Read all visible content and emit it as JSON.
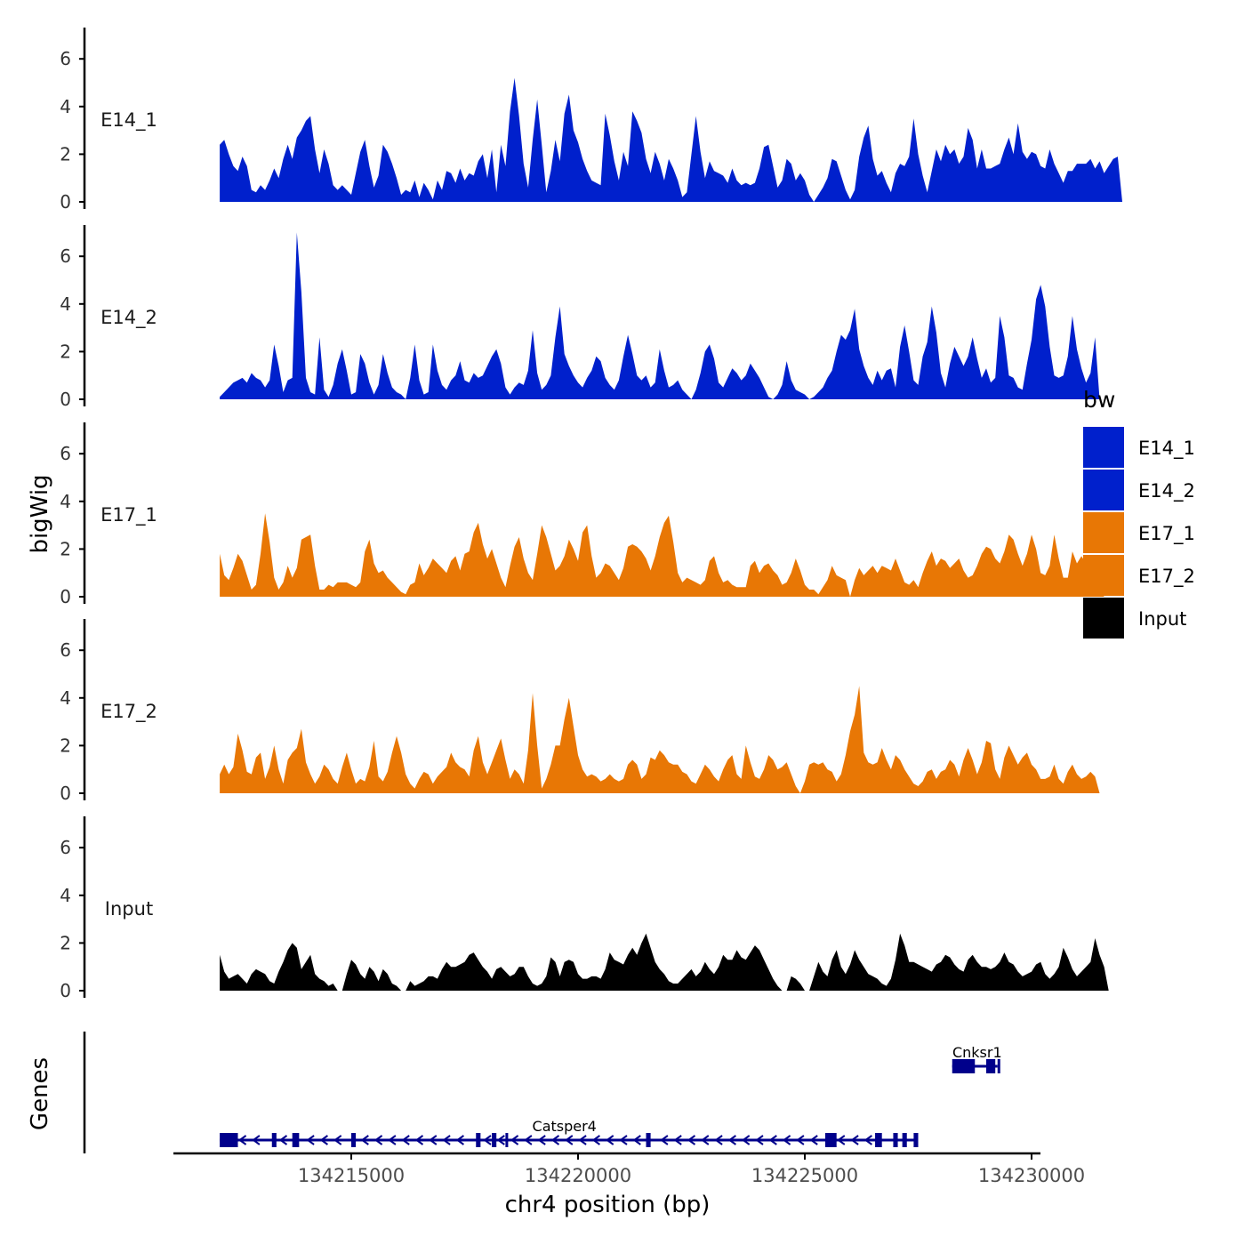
{
  "chart_data": {
    "type": "area",
    "title": "",
    "ylabel": "bigWig",
    "xlabel": "chr4 position (bp)",
    "genes_label": "Genes",
    "ylim": [
      0,
      7
    ],
    "y_ticks": [
      0,
      2,
      4,
      6
    ],
    "xlim": [
      134211300,
      134230200
    ],
    "x_ticks": [
      134215000,
      134220000,
      134225000,
      134230000
    ],
    "legend": {
      "title": "bw",
      "position": "right",
      "entries": [
        {
          "label": "E14_1",
          "color": "#0020CC"
        },
        {
          "label": "E14_2",
          "color": "#0020CC"
        },
        {
          "label": "E17_1",
          "color": "#E87705"
        },
        {
          "label": "E17_2",
          "color": "#E87705"
        },
        {
          "label": "Input",
          "color": "#000000"
        }
      ]
    },
    "track_start": 134212100,
    "track_step": 100,
    "series": [
      {
        "name": "E14_1",
        "color": "#0020CC",
        "values": [
          2.4,
          2.6,
          2.0,
          1.5,
          1.3,
          1.9,
          1.5,
          0.5,
          0.4,
          0.7,
          0.5,
          0.9,
          1.4,
          1.0,
          1.8,
          2.4,
          1.8,
          2.7,
          3.0,
          3.4,
          3.6,
          2.2,
          1.2,
          2.2,
          1.6,
          0.7,
          0.5,
          0.7,
          0.5,
          0.3,
          1.2,
          2.1,
          2.6,
          1.5,
          0.6,
          1.1,
          2.4,
          2.1,
          1.6,
          1.0,
          0.3,
          0.5,
          0.4,
          0.9,
          0.2,
          0.8,
          0.5,
          0.1,
          0.9,
          0.5,
          1.3,
          1.2,
          0.8,
          1.4,
          0.9,
          1.2,
          1.1,
          1.7,
          2.0,
          1.0,
          2.2,
          0.4,
          2.4,
          1.5,
          3.8,
          5.2,
          3.6,
          1.6,
          0.6,
          2.6,
          4.3,
          2.4,
          0.4,
          1.3,
          2.6,
          1.7,
          3.7,
          4.5,
          3.0,
          2.5,
          1.8,
          1.3,
          0.9,
          0.8,
          0.7,
          3.7,
          2.8,
          1.7,
          0.9,
          2.1,
          1.5,
          3.8,
          3.4,
          2.9,
          1.8,
          1.2,
          2.1,
          1.6,
          0.9,
          1.8,
          1.4,
          0.9,
          0.2,
          0.4,
          2.0,
          3.6,
          2.1,
          1.0,
          1.7,
          1.3,
          1.2,
          1.1,
          0.8,
          1.4,
          0.9,
          0.7,
          0.8,
          0.7,
          0.8,
          1.4,
          2.3,
          2.4,
          1.5,
          0.6,
          0.9,
          1.8,
          1.6,
          0.9,
          1.2,
          0.9,
          0.3,
          0.0,
          0.3,
          0.6,
          1.0,
          1.8,
          1.7,
          1.1,
          0.5,
          0.1,
          0.5,
          1.9,
          2.7,
          3.2,
          1.8,
          1.1,
          1.3,
          0.8,
          0.4,
          1.2,
          1.6,
          1.5,
          1.9,
          3.5,
          2.0,
          1.1,
          0.4,
          1.3,
          2.2,
          1.7,
          2.4,
          2.0,
          2.2,
          1.6,
          1.9,
          3.1,
          2.6,
          1.4,
          2.2,
          1.4,
          1.4,
          1.5,
          1.6,
          2.2,
          2.7,
          2.0,
          3.3,
          2.1,
          1.8,
          2.1,
          2.0,
          1.5,
          1.4,
          2.2,
          1.6,
          1.2,
          0.8,
          1.3,
          1.3,
          1.6,
          1.6,
          1.6,
          1.8,
          1.4,
          1.7,
          1.2,
          1.5,
          1.8,
          1.9,
          0.0
        ]
      },
      {
        "name": "E14_2",
        "color": "#0020CC",
        "values": [
          0.1,
          0.3,
          0.5,
          0.7,
          0.8,
          0.9,
          0.7,
          1.1,
          0.9,
          0.8,
          0.5,
          0.8,
          2.3,
          1.4,
          0.3,
          0.8,
          0.9,
          7.0,
          4.5,
          0.9,
          0.3,
          0.2,
          2.6,
          0.4,
          0.1,
          0.6,
          1.5,
          2.1,
          1.2,
          0.2,
          0.3,
          1.9,
          1.5,
          0.7,
          0.2,
          0.6,
          1.9,
          1.1,
          0.5,
          0.3,
          0.2,
          0.0,
          0.9,
          2.3,
          0.8,
          0.2,
          0.3,
          2.3,
          1.2,
          0.6,
          0.4,
          0.8,
          1.0,
          1.6,
          0.8,
          0.7,
          1.1,
          0.9,
          1.0,
          1.4,
          1.8,
          2.1,
          1.5,
          0.5,
          0.2,
          0.5,
          0.7,
          0.6,
          1.2,
          2.9,
          1.1,
          0.4,
          0.6,
          1.0,
          2.6,
          3.9,
          1.9,
          1.4,
          1.0,
          0.7,
          0.5,
          0.9,
          1.2,
          1.8,
          1.6,
          0.9,
          0.6,
          0.4,
          0.8,
          1.8,
          2.7,
          1.9,
          1.0,
          0.8,
          1.0,
          0.5,
          0.7,
          2.1,
          1.2,
          0.5,
          0.6,
          0.8,
          0.4,
          0.2,
          0.0,
          0.4,
          1.1,
          2.0,
          2.3,
          1.7,
          0.7,
          0.5,
          0.9,
          1.3,
          1.1,
          0.8,
          1.0,
          1.5,
          1.2,
          0.9,
          0.5,
          0.1,
          0.0,
          0.2,
          0.6,
          1.6,
          0.8,
          0.4,
          0.3,
          0.2,
          0.0,
          0.1,
          0.3,
          0.5,
          0.9,
          1.2,
          2.0,
          2.7,
          2.5,
          2.9,
          3.8,
          2.1,
          1.4,
          0.9,
          0.6,
          1.2,
          0.8,
          1.2,
          1.3,
          0.5,
          2.2,
          3.1,
          2.0,
          0.8,
          0.6,
          1.8,
          2.4,
          3.9,
          2.8,
          1.1,
          0.5,
          1.5,
          2.2,
          1.8,
          1.4,
          1.8,
          2.6,
          1.7,
          0.9,
          1.3,
          0.7,
          0.9,
          3.5,
          2.6,
          1.0,
          0.9,
          0.5,
          0.4,
          1.5,
          2.5,
          4.2,
          4.8,
          3.9,
          2.2,
          1.0,
          0.9,
          1.0,
          1.8,
          3.5,
          2.1,
          1.3,
          0.7,
          1.1,
          2.6,
          0.0
        ]
      },
      {
        "name": "E17_1",
        "color": "#E87705",
        "values": [
          1.8,
          0.9,
          0.7,
          1.2,
          1.8,
          1.5,
          0.9,
          0.3,
          0.5,
          1.8,
          3.5,
          2.3,
          0.8,
          0.3,
          0.6,
          1.3,
          0.8,
          1.2,
          2.4,
          2.5,
          2.6,
          1.3,
          0.3,
          0.3,
          0.5,
          0.4,
          0.6,
          0.6,
          0.6,
          0.5,
          0.4,
          0.6,
          1.9,
          2.4,
          1.4,
          1.0,
          1.1,
          0.8,
          0.6,
          0.4,
          0.2,
          0.1,
          0.5,
          0.6,
          1.4,
          0.9,
          1.2,
          1.6,
          1.4,
          1.2,
          1.0,
          1.5,
          1.7,
          1.1,
          1.8,
          1.9,
          2.7,
          3.1,
          2.2,
          1.6,
          2.0,
          1.4,
          0.8,
          0.4,
          1.3,
          2.1,
          2.5,
          1.6,
          1.0,
          0.7,
          1.8,
          3.0,
          2.5,
          1.8,
          1.1,
          1.3,
          1.7,
          2.4,
          2.0,
          1.5,
          2.7,
          3.0,
          1.7,
          0.8,
          1.0,
          1.4,
          1.3,
          1.0,
          0.7,
          1.2,
          2.1,
          2.2,
          2.1,
          1.9,
          1.6,
          1.1,
          1.7,
          2.5,
          3.1,
          3.4,
          2.3,
          1.0,
          0.6,
          0.8,
          0.7,
          0.6,
          0.5,
          0.7,
          1.5,
          1.7,
          1.0,
          0.6,
          0.7,
          0.5,
          0.4,
          0.4,
          0.4,
          1.3,
          1.5,
          1.0,
          1.3,
          1.4,
          1.1,
          0.9,
          0.5,
          0.6,
          1.0,
          1.6,
          1.1,
          0.5,
          0.3,
          0.3,
          0.1,
          0.4,
          0.7,
          1.3,
          0.9,
          0.8,
          0.7,
          0.0,
          0.7,
          1.2,
          0.9,
          1.1,
          1.3,
          1.0,
          1.3,
          1.2,
          1.1,
          1.6,
          1.1,
          0.6,
          0.5,
          0.7,
          0.4,
          1.0,
          1.5,
          1.9,
          1.3,
          1.6,
          1.5,
          1.2,
          1.4,
          1.6,
          1.1,
          0.8,
          0.9,
          1.3,
          1.8,
          2.1,
          2.0,
          1.6,
          1.4,
          1.9,
          2.6,
          2.4,
          1.8,
          1.3,
          1.8,
          2.6,
          2.0,
          1.0,
          0.9,
          1.3,
          2.6,
          1.6,
          0.8,
          0.8,
          1.9,
          1.4,
          1.7,
          1.4,
          1.2,
          0.6,
          0.5,
          0.0
        ]
      },
      {
        "name": "E17_2",
        "color": "#E87705",
        "values": [
          0.8,
          1.2,
          0.8,
          1.1,
          2.5,
          1.8,
          0.9,
          0.8,
          1.5,
          1.7,
          0.6,
          1.1,
          2.0,
          1.0,
          0.4,
          1.4,
          1.7,
          1.9,
          2.7,
          1.3,
          0.8,
          0.4,
          0.7,
          1.2,
          1.0,
          0.6,
          0.4,
          1.1,
          1.7,
          1.0,
          0.4,
          0.6,
          0.5,
          1.1,
          2.2,
          0.7,
          0.5,
          0.9,
          1.7,
          2.4,
          1.7,
          0.8,
          0.4,
          0.2,
          0.6,
          0.9,
          0.8,
          0.4,
          0.7,
          0.9,
          1.1,
          1.7,
          1.3,
          1.1,
          1.0,
          0.7,
          1.8,
          2.4,
          1.3,
          0.8,
          1.3,
          1.8,
          2.3,
          1.4,
          0.6,
          1.0,
          0.8,
          0.4,
          1.8,
          4.2,
          2.0,
          0.2,
          0.6,
          1.2,
          2.0,
          2.0,
          3.1,
          4.0,
          2.8,
          1.6,
          1.0,
          0.7,
          0.8,
          0.7,
          0.5,
          0.6,
          0.8,
          0.6,
          0.5,
          0.6,
          1.2,
          1.4,
          1.2,
          0.6,
          0.8,
          1.5,
          1.4,
          1.8,
          1.6,
          1.3,
          1.2,
          1.2,
          0.9,
          0.8,
          0.5,
          0.4,
          0.8,
          1.2,
          1.0,
          0.7,
          0.5,
          1.0,
          1.4,
          1.6,
          0.8,
          0.6,
          2.0,
          1.3,
          0.7,
          0.6,
          1.0,
          1.6,
          1.4,
          1.0,
          1.1,
          1.3,
          0.8,
          0.3,
          0.0,
          0.5,
          1.2,
          1.3,
          1.2,
          1.3,
          1.0,
          0.9,
          0.5,
          0.8,
          1.6,
          2.6,
          3.3,
          4.5,
          1.7,
          1.3,
          1.2,
          1.3,
          1.9,
          1.4,
          1.0,
          1.6,
          1.4,
          1.0,
          0.7,
          0.4,
          0.3,
          0.5,
          0.9,
          1.0,
          0.6,
          0.9,
          1.0,
          1.4,
          1.2,
          0.7,
          1.4,
          1.9,
          1.4,
          0.8,
          1.3,
          2.2,
          2.1,
          1.0,
          0.6,
          1.5,
          2.0,
          1.6,
          1.2,
          1.5,
          1.7,
          1.2,
          1.0,
          0.6,
          0.6,
          0.7,
          1.2,
          0.6,
          0.4,
          0.9,
          1.2,
          0.8,
          0.6,
          0.7,
          0.9,
          0.7,
          0.0
        ]
      },
      {
        "name": "Input",
        "color": "#000000",
        "values": [
          1.5,
          0.8,
          0.5,
          0.6,
          0.7,
          0.5,
          0.3,
          0.7,
          0.9,
          0.8,
          0.7,
          0.4,
          0.3,
          0.8,
          1.2,
          1.7,
          2.0,
          1.8,
          0.9,
          1.2,
          1.5,
          0.7,
          0.5,
          0.4,
          0.2,
          0.3,
          0.0,
          0.0,
          0.7,
          1.3,
          1.1,
          0.7,
          0.5,
          1.0,
          0.8,
          0.4,
          0.9,
          0.7,
          0.3,
          0.2,
          0.0,
          0.0,
          0.4,
          0.2,
          0.3,
          0.4,
          0.6,
          0.6,
          0.5,
          0.9,
          1.2,
          1.0,
          1.0,
          1.1,
          1.2,
          1.5,
          1.6,
          1.3,
          1.0,
          0.8,
          0.5,
          0.9,
          1.0,
          0.8,
          0.6,
          0.7,
          1.0,
          1.0,
          0.6,
          0.3,
          0.2,
          0.3,
          0.6,
          1.4,
          1.2,
          0.6,
          1.2,
          1.3,
          1.2,
          0.7,
          0.5,
          0.5,
          0.6,
          0.6,
          0.5,
          0.9,
          1.6,
          1.3,
          1.2,
          1.1,
          1.5,
          1.8,
          1.5,
          2.0,
          2.4,
          1.8,
          1.2,
          0.9,
          0.7,
          0.4,
          0.3,
          0.3,
          0.5,
          0.7,
          0.9,
          0.6,
          0.8,
          1.2,
          0.9,
          0.7,
          1.0,
          1.5,
          1.3,
          1.3,
          1.7,
          1.4,
          1.3,
          1.6,
          1.9,
          1.7,
          1.3,
          0.9,
          0.5,
          0.2,
          0.0,
          0.0,
          0.6,
          0.5,
          0.3,
          0.0,
          0.0,
          0.6,
          1.2,
          0.8,
          0.6,
          1.3,
          1.7,
          1.0,
          0.7,
          1.1,
          1.7,
          1.3,
          1.0,
          0.7,
          0.6,
          0.5,
          0.3,
          0.2,
          0.5,
          1.3,
          2.4,
          1.9,
          1.2,
          1.2,
          1.1,
          1.0,
          0.9,
          0.8,
          1.1,
          1.2,
          1.5,
          1.4,
          1.1,
          0.9,
          0.8,
          1.3,
          1.5,
          1.2,
          1.0,
          1.0,
          0.9,
          1.0,
          1.2,
          1.6,
          1.2,
          1.1,
          0.8,
          0.6,
          0.7,
          0.8,
          1.1,
          1.2,
          0.7,
          0.5,
          0.7,
          1.0,
          1.8,
          1.4,
          0.9,
          0.6,
          0.8,
          1.0,
          1.2,
          2.2,
          1.5,
          1.0,
          0.0
        ]
      }
    ],
    "genes": [
      {
        "name": "Catsper4",
        "start": 134212100,
        "end": 134227500,
        "strand": "-",
        "row": 1,
        "label_position": 134219700,
        "exons": [
          [
            134212100,
            134212500
          ],
          [
            134213250,
            134213350
          ],
          [
            134213700,
            134213850
          ],
          [
            134215000,
            134215100
          ],
          [
            134217750,
            134217850
          ],
          [
            134218100,
            134218200
          ],
          [
            134218400,
            134218450
          ],
          [
            134221500,
            134221600
          ],
          [
            134225450,
            134225700
          ],
          [
            134226550,
            134226700
          ],
          [
            134226950,
            134227050
          ],
          [
            134227150,
            134227250
          ],
          [
            134227400,
            134227500
          ]
        ]
      },
      {
        "name": "Cnksr1",
        "start": 134228250,
        "end": 134229250,
        "strand": "-",
        "row": 2,
        "label_position": 134228800,
        "exons": [
          [
            134228250,
            134228750
          ],
          [
            134229000,
            134229200
          ],
          [
            134229250,
            134229300
          ]
        ]
      }
    ]
  }
}
